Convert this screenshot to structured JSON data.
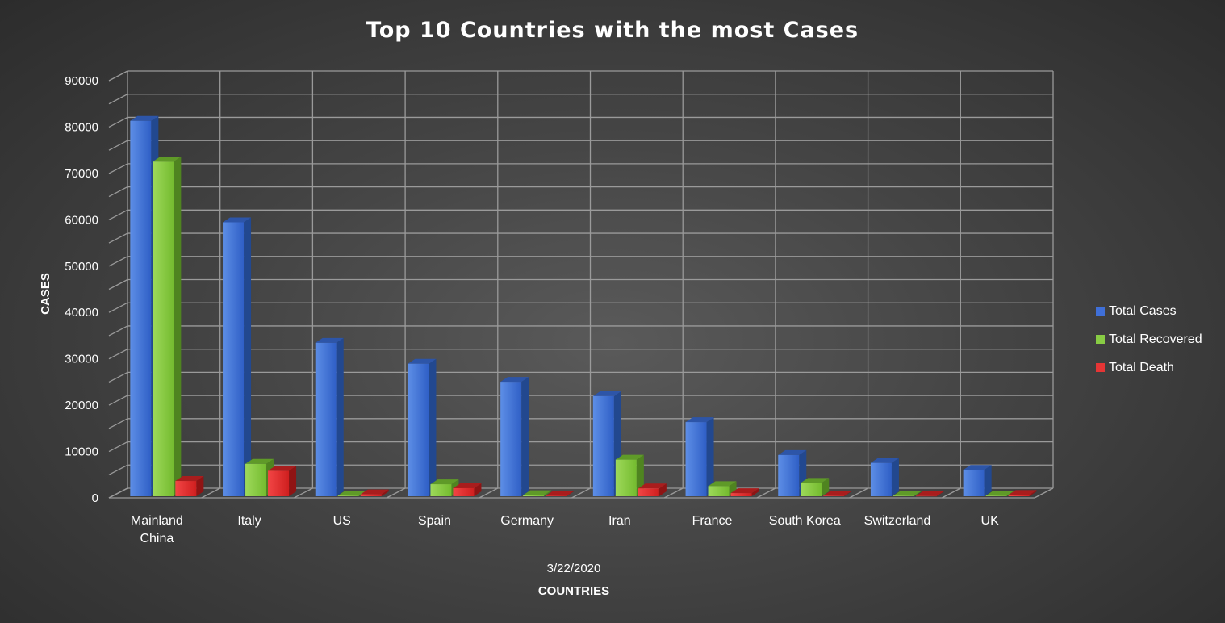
{
  "chart_data": {
    "type": "bar",
    "title": "Top 10 Countries with the most Cases",
    "subtitle": "3/22/2020",
    "xlabel": "COUNTRIES",
    "ylabel": "CASES",
    "ylim": [
      0,
      90000
    ],
    "y_ticks": [
      "0",
      "10000",
      "20000",
      "30000",
      "40000",
      "50000",
      "60000",
      "70000",
      "80000",
      "90000"
    ],
    "categories": [
      "Mainland China",
      "Italy",
      "US",
      "Spain",
      "Germany",
      "Iran",
      "France",
      "South Korea",
      "Switzerland",
      "UK"
    ],
    "series": [
      {
        "name": "Total Cases",
        "color": "#3f6fd8",
        "values": [
          81000,
          59100,
          33100,
          28600,
          24700,
          21600,
          16000,
          8900,
          7200,
          5700
        ]
      },
      {
        "name": "Total Recovered",
        "color": "#88cc44",
        "values": [
          72200,
          7000,
          150,
          2600,
          250,
          7900,
          2200,
          2900,
          130,
          135
        ]
      },
      {
        "name": "Total Death",
        "color": "#e53535",
        "values": [
          3300,
          5500,
          420,
          1750,
          90,
          1700,
          680,
          110,
          60,
          280
        ]
      }
    ],
    "grid": true,
    "legend_position": "right",
    "style": "3d-clustered-column"
  }
}
